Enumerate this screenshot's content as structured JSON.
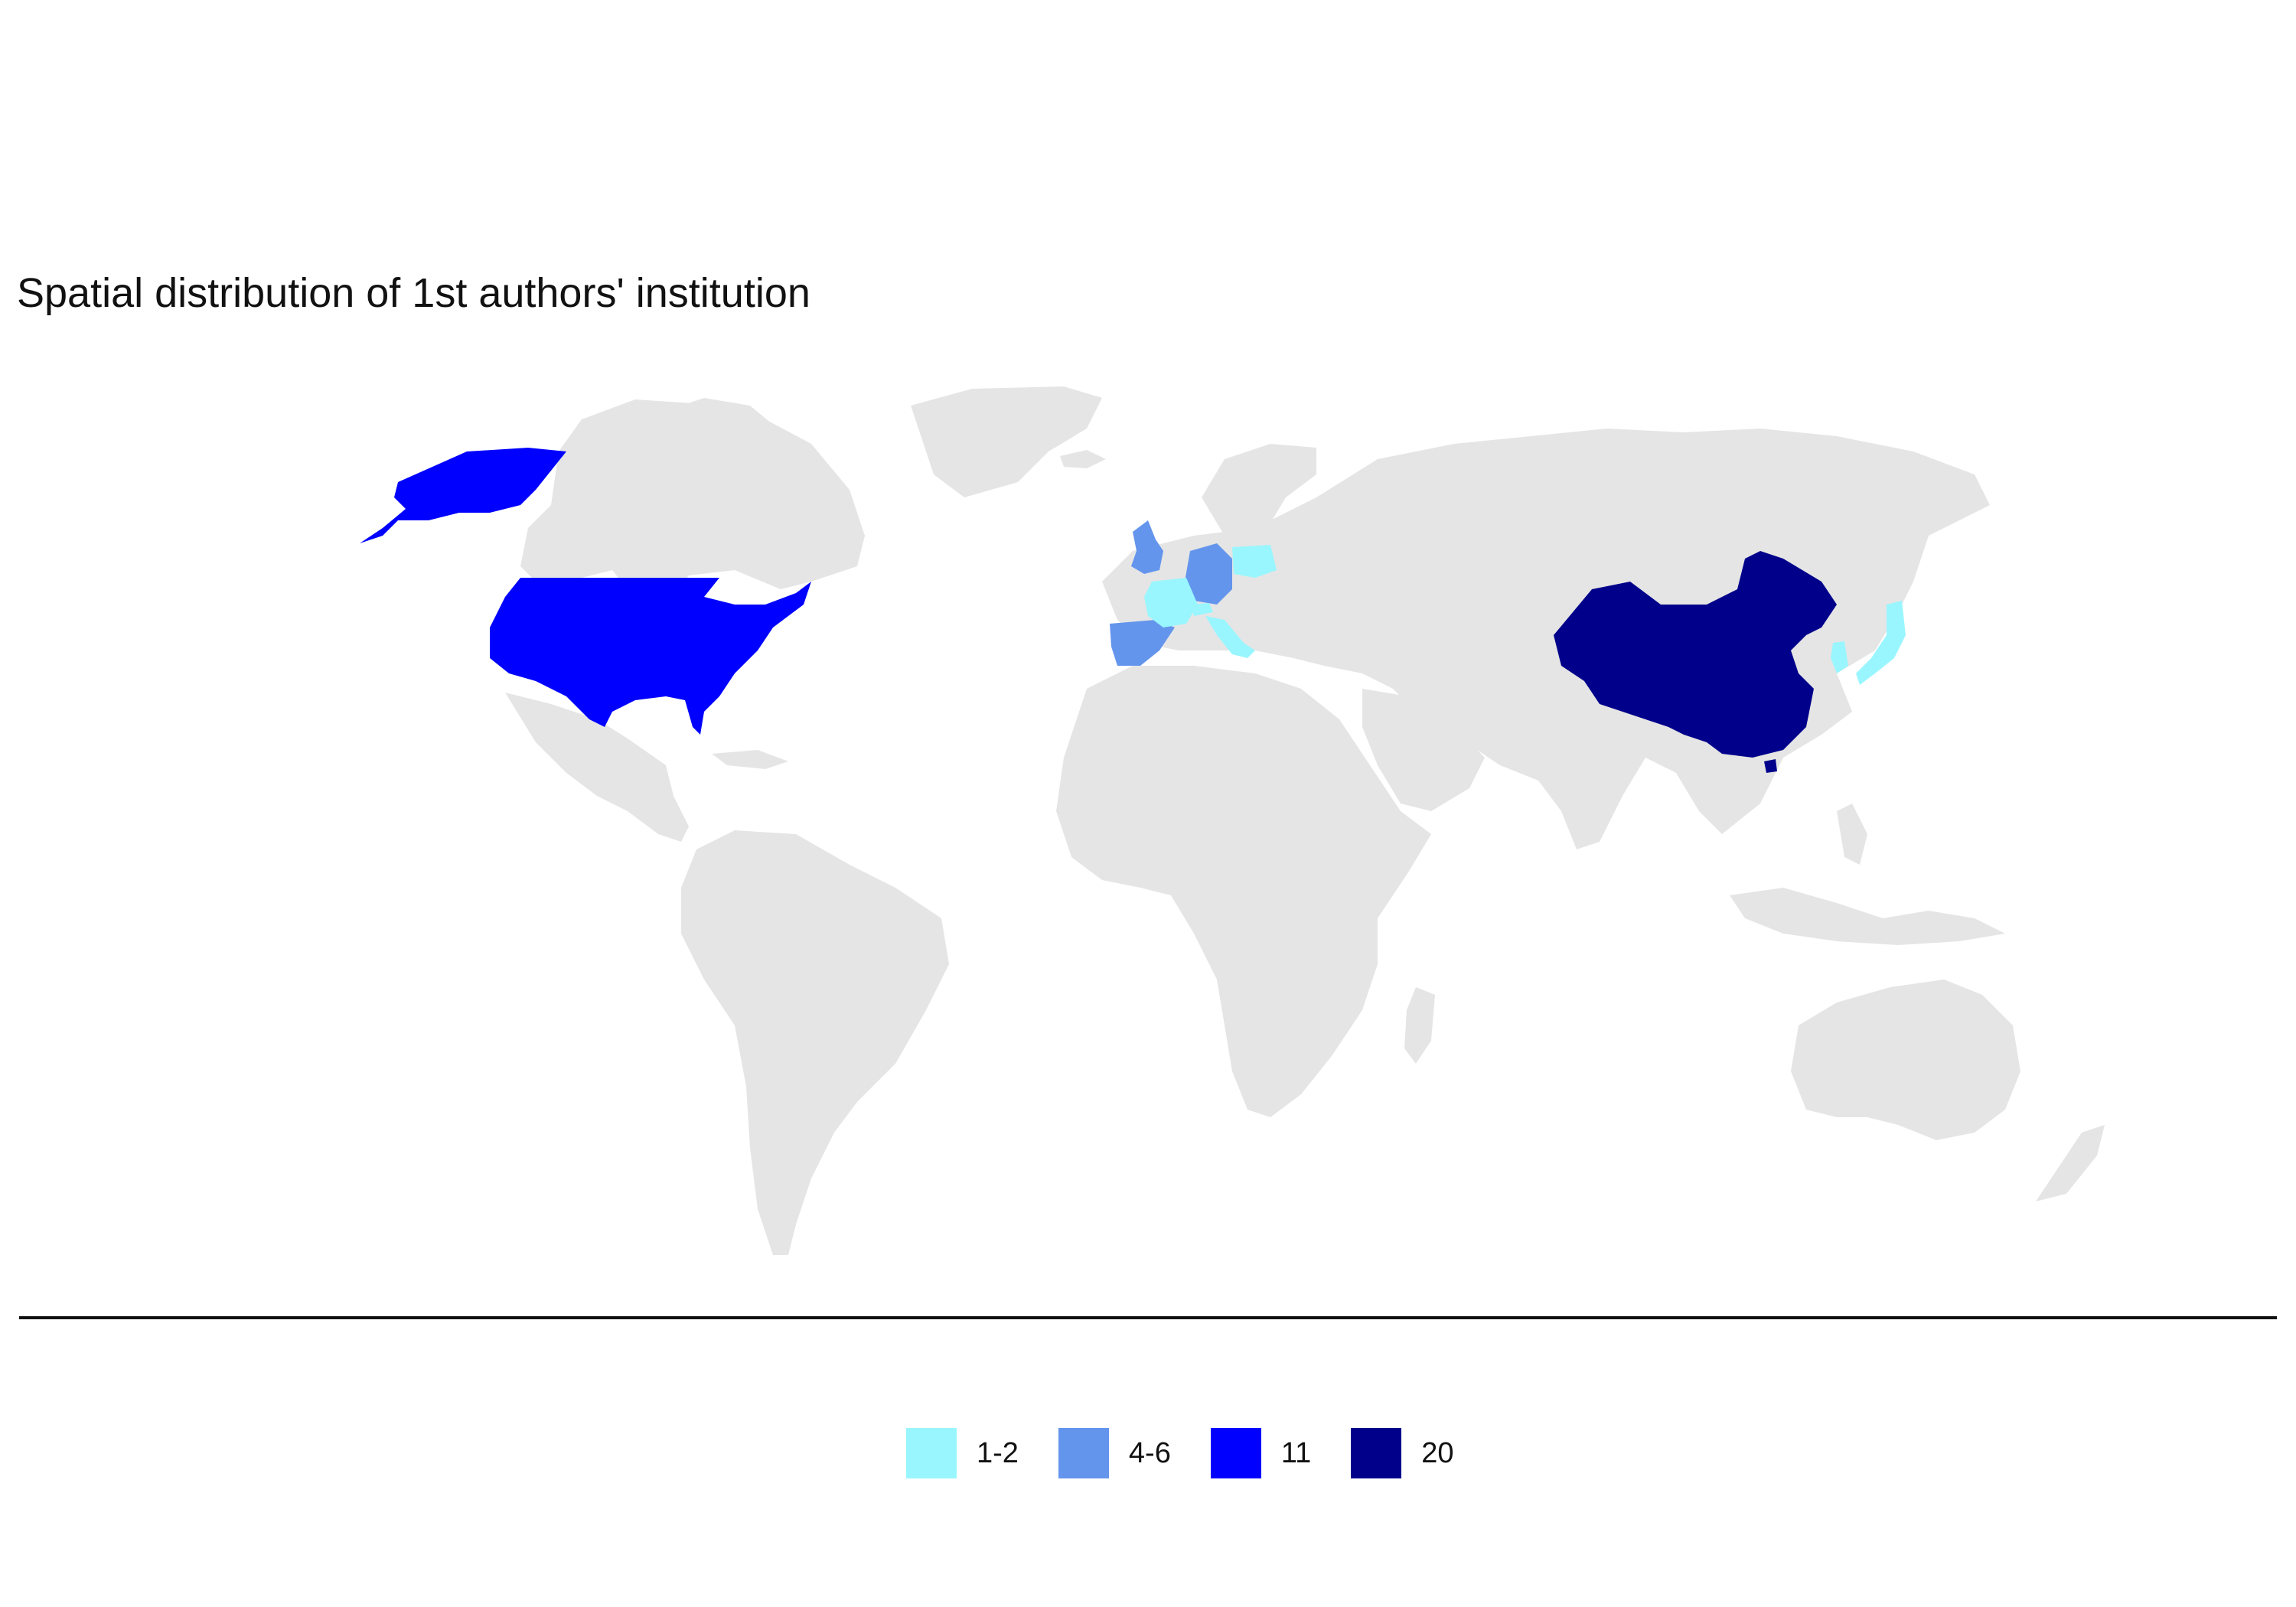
{
  "title": "Spatial distribution of 1st authors' institution",
  "colors": {
    "background": "#ffffff",
    "land": "#e5e5e5",
    "axis_line": "#111111"
  },
  "legend": {
    "placement": "bottom",
    "items": [
      {
        "label": "1-2",
        "color": "#99f6ff"
      },
      {
        "label": "4-6",
        "color": "#6495ed"
      },
      {
        "label": "11",
        "color": "#0000ff"
      },
      {
        "label": "20",
        "color": "#00008b"
      }
    ]
  },
  "regions": [
    {
      "name": "China",
      "class": "20"
    },
    {
      "name": "United States",
      "class": "11"
    },
    {
      "name": "United Kingdom",
      "class": "4-6"
    },
    {
      "name": "Germany",
      "class": "4-6"
    },
    {
      "name": "Spain",
      "class": "4-6"
    },
    {
      "name": "France",
      "class": "1-2"
    },
    {
      "name": "Switzerland",
      "class": "1-2"
    },
    {
      "name": "Italy",
      "class": "1-2"
    },
    {
      "name": "Poland",
      "class": "1-2"
    },
    {
      "name": "South Korea",
      "class": "1-2"
    },
    {
      "name": "Japan",
      "class": "1-2"
    }
  ]
}
